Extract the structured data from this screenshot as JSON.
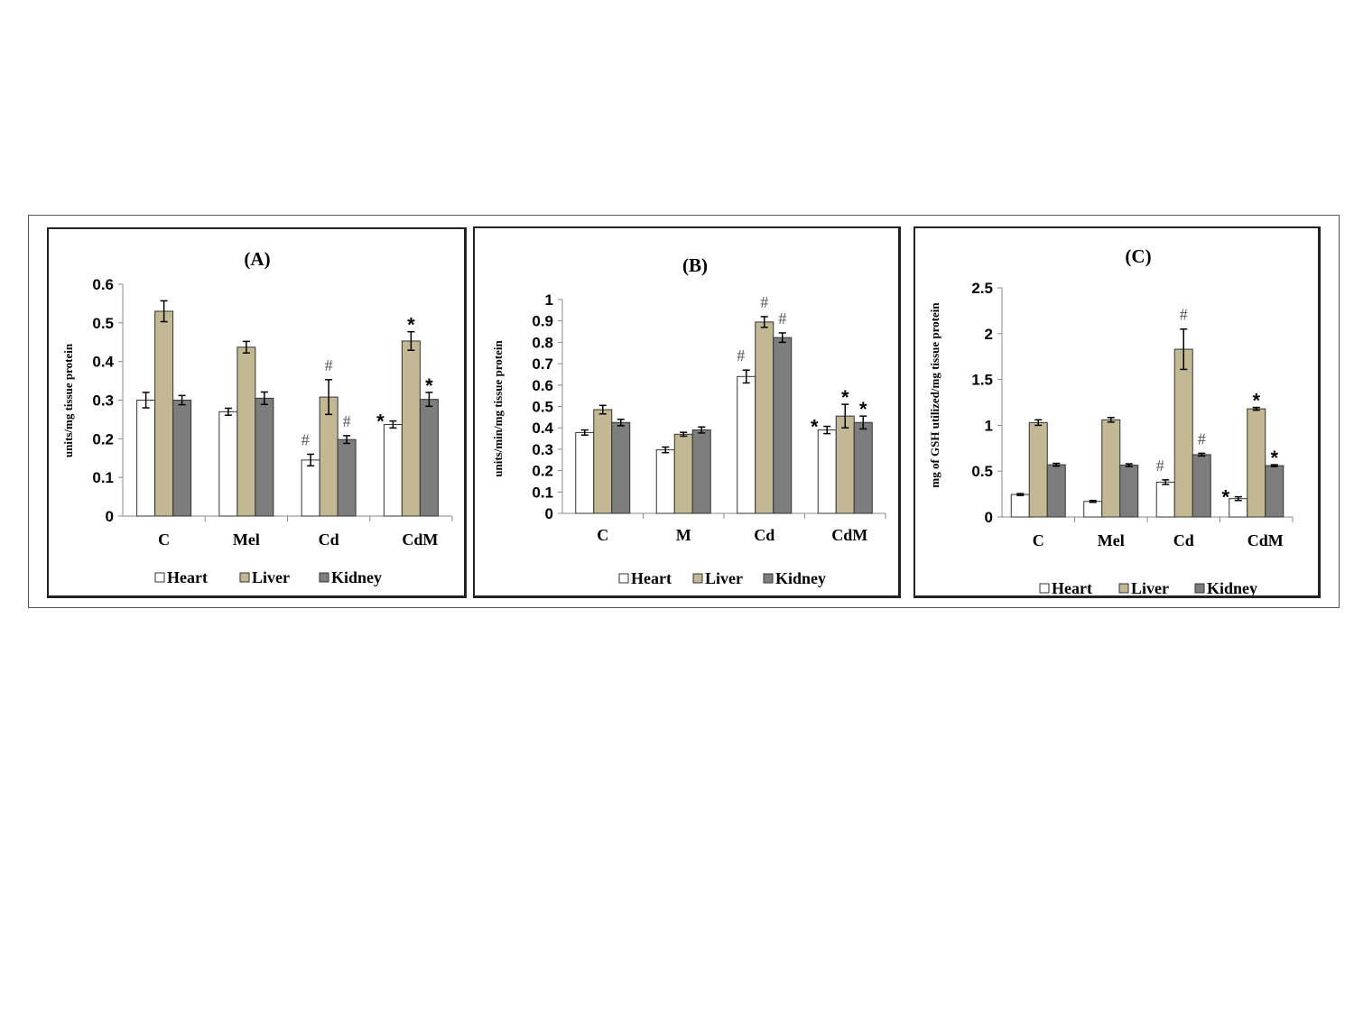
{
  "colors": {
    "Heart": "#ffffff",
    "Liver": "#c2b894",
    "Kidney": "#7d7d7d"
  },
  "chart_data": [
    {
      "type": "bar",
      "title": "(A)",
      "ylabel": "units/mg tissue protein",
      "categories": [
        "C",
        "Mel",
        "Cd",
        "CdM"
      ],
      "ylim": [
        0,
        0.6
      ],
      "yticks": [
        "0",
        "0.1",
        "0.2",
        "0.3",
        "0.4",
        "0.5",
        "0.6"
      ],
      "legend_position": "bottom",
      "series": [
        {
          "name": "Heart",
          "values": [
            0.3,
            0.27,
            0.145,
            0.237
          ],
          "errors": [
            0.02,
            0.009,
            0.015,
            0.009
          ]
        },
        {
          "name": "Liver",
          "values": [
            0.53,
            0.437,
            0.308,
            0.453
          ],
          "errors": [
            0.027,
            0.015,
            0.045,
            0.024
          ]
        },
        {
          "name": "Kidney",
          "values": [
            0.3,
            0.305,
            0.198,
            0.302
          ],
          "errors": [
            0.012,
            0.016,
            0.01,
            0.018
          ]
        }
      ],
      "annotations": [
        {
          "text": "#",
          "category": 2,
          "series": 0
        },
        {
          "text": "#",
          "category": 2,
          "series": 1
        },
        {
          "text": "#",
          "category": 2,
          "series": 2
        },
        {
          "text": "*",
          "category": 3,
          "series": 0
        },
        {
          "text": "*",
          "category": 3,
          "series": 1
        },
        {
          "text": "*",
          "category": 3,
          "series": 2
        }
      ]
    },
    {
      "type": "bar",
      "title": "(B)",
      "ylabel": "units/min/mg tissue protein",
      "categories": [
        "C",
        "M",
        "Cd",
        "CdM"
      ],
      "ylim": [
        0,
        1
      ],
      "yticks": [
        "0",
        "0.1",
        "0.2",
        "0.3",
        "0.4",
        "0.5",
        "0.6",
        "0.7",
        "0.8",
        "0.9",
        "1"
      ],
      "legend_position": "bottom",
      "series": [
        {
          "name": "Heart",
          "values": [
            0.378,
            0.297,
            0.64,
            0.39
          ],
          "errors": [
            0.012,
            0.013,
            0.03,
            0.017
          ]
        },
        {
          "name": "Liver",
          "values": [
            0.485,
            0.37,
            0.895,
            0.455
          ],
          "errors": [
            0.02,
            0.009,
            0.025,
            0.055
          ]
        },
        {
          "name": "Kidney",
          "values": [
            0.425,
            0.39,
            0.822,
            0.425
          ],
          "errors": [
            0.015,
            0.014,
            0.022,
            0.03
          ]
        }
      ],
      "annotations": [
        {
          "text": "#",
          "category": 2,
          "series": 0
        },
        {
          "text": "#",
          "category": 2,
          "series": 1
        },
        {
          "text": "#",
          "category": 2,
          "series": 2
        },
        {
          "text": "*",
          "category": 3,
          "series": 0
        },
        {
          "text": "*",
          "category": 3,
          "series": 1
        },
        {
          "text": "*",
          "category": 3,
          "series": 2
        }
      ]
    },
    {
      "type": "bar",
      "title": "(C)",
      "ylabel": "mg of GSH utilized/mg tissue protein",
      "categories": [
        "C",
        "Mel",
        "Cd",
        "CdM"
      ],
      "ylim": [
        0,
        2.5
      ],
      "yticks": [
        "0",
        "0.5",
        "1",
        "1.5",
        "2",
        "2.5"
      ],
      "legend_position": "bottom",
      "series": [
        {
          "name": "Heart",
          "values": [
            0.245,
            0.17,
            0.38,
            0.2
          ],
          "errors": [
            0.01,
            0.01,
            0.025,
            0.02
          ]
        },
        {
          "name": "Liver",
          "values": [
            1.03,
            1.06,
            1.83,
            1.18
          ],
          "errors": [
            0.03,
            0.025,
            0.22,
            0.015
          ]
        },
        {
          "name": "Kidney",
          "values": [
            0.57,
            0.565,
            0.68,
            0.56
          ],
          "errors": [
            0.015,
            0.015,
            0.015,
            0.01
          ]
        }
      ],
      "annotations": [
        {
          "text": "#",
          "category": 2,
          "series": 0
        },
        {
          "text": "#",
          "category": 2,
          "series": 1
        },
        {
          "text": "#",
          "category": 2,
          "series": 2
        },
        {
          "text": "*",
          "category": 3,
          "series": 0
        },
        {
          "text": "*",
          "category": 3,
          "series": 1
        },
        {
          "text": "*",
          "category": 3,
          "series": 2
        }
      ]
    }
  ]
}
